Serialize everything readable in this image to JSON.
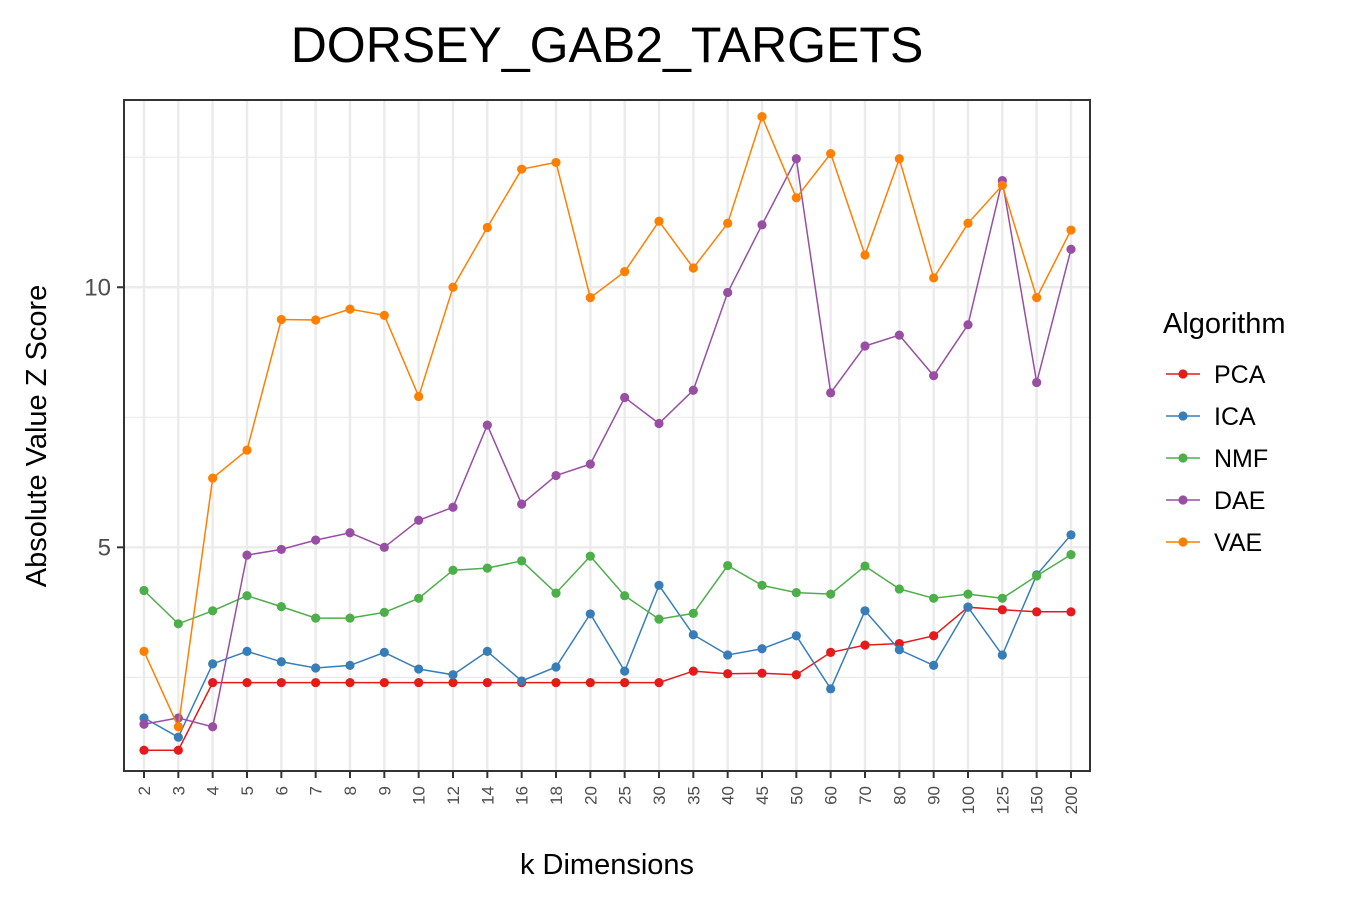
{
  "chart_data": {
    "type": "line",
    "title": "DORSEY_GAB2_TARGETS",
    "xlabel": "k Dimensions",
    "ylabel": "Absolute Value Z Score",
    "categories": [
      "2",
      "3",
      "4",
      "5",
      "6",
      "7",
      "8",
      "9",
      "10",
      "12",
      "14",
      "16",
      "18",
      "20",
      "25",
      "30",
      "35",
      "40",
      "45",
      "50",
      "60",
      "70",
      "80",
      "90",
      "100",
      "125",
      "150",
      "200"
    ],
    "y_ticks": [
      5,
      10
    ],
    "ylim": [
      0.7,
      13.6
    ],
    "grid": true,
    "legend": {
      "title": "Algorithm",
      "position": "right"
    },
    "series": [
      {
        "name": "PCA",
        "color": "#E41A1C",
        "values": [
          1.1,
          1.1,
          2.4,
          2.4,
          2.4,
          2.4,
          2.4,
          2.4,
          2.4,
          2.4,
          2.4,
          2.4,
          2.4,
          2.4,
          2.4,
          2.4,
          2.62,
          2.57,
          2.58,
          2.55,
          2.98,
          3.12,
          3.15,
          3.3,
          3.85,
          3.8,
          3.76,
          3.76
        ]
      },
      {
        "name": "ICA",
        "color": "#377EB8",
        "values": [
          1.72,
          1.35,
          2.76,
          3.0,
          2.8,
          2.68,
          2.73,
          2.98,
          2.66,
          2.55,
          3.0,
          2.43,
          2.7,
          3.72,
          2.62,
          4.27,
          3.32,
          2.93,
          3.05,
          3.3,
          2.28,
          3.78,
          3.03,
          2.73,
          3.85,
          2.93,
          4.47,
          5.24
        ]
      },
      {
        "name": "NMF",
        "color": "#4DAF4A",
        "values": [
          4.17,
          3.53,
          3.78,
          4.07,
          3.86,
          3.64,
          3.64,
          3.75,
          4.02,
          4.56,
          4.6,
          4.74,
          4.12,
          4.83,
          4.07,
          3.62,
          3.73,
          4.65,
          4.27,
          4.13,
          4.1,
          4.64,
          4.2,
          4.02,
          4.1,
          4.02,
          4.45,
          4.86
        ]
      },
      {
        "name": "DAE",
        "color": "#984EA3",
        "values": [
          1.6,
          1.72,
          1.55,
          4.85,
          4.96,
          5.14,
          5.28,
          5.0,
          5.52,
          5.77,
          7.35,
          5.83,
          6.38,
          6.6,
          7.88,
          7.38,
          8.02,
          9.9,
          11.2,
          12.47,
          7.97,
          8.87,
          9.08,
          8.3,
          9.28,
          12.05,
          8.17,
          10.73
        ]
      },
      {
        "name": "VAE",
        "color": "#FF7F00",
        "values": [
          3.0,
          1.55,
          6.33,
          6.87,
          9.38,
          9.37,
          9.58,
          9.46,
          7.9,
          10.0,
          11.15,
          12.27,
          12.4,
          9.8,
          10.3,
          11.27,
          10.37,
          11.23,
          13.28,
          11.72,
          12.57,
          10.62,
          12.47,
          10.18,
          11.23,
          11.96,
          9.8,
          11.1
        ]
      }
    ]
  }
}
